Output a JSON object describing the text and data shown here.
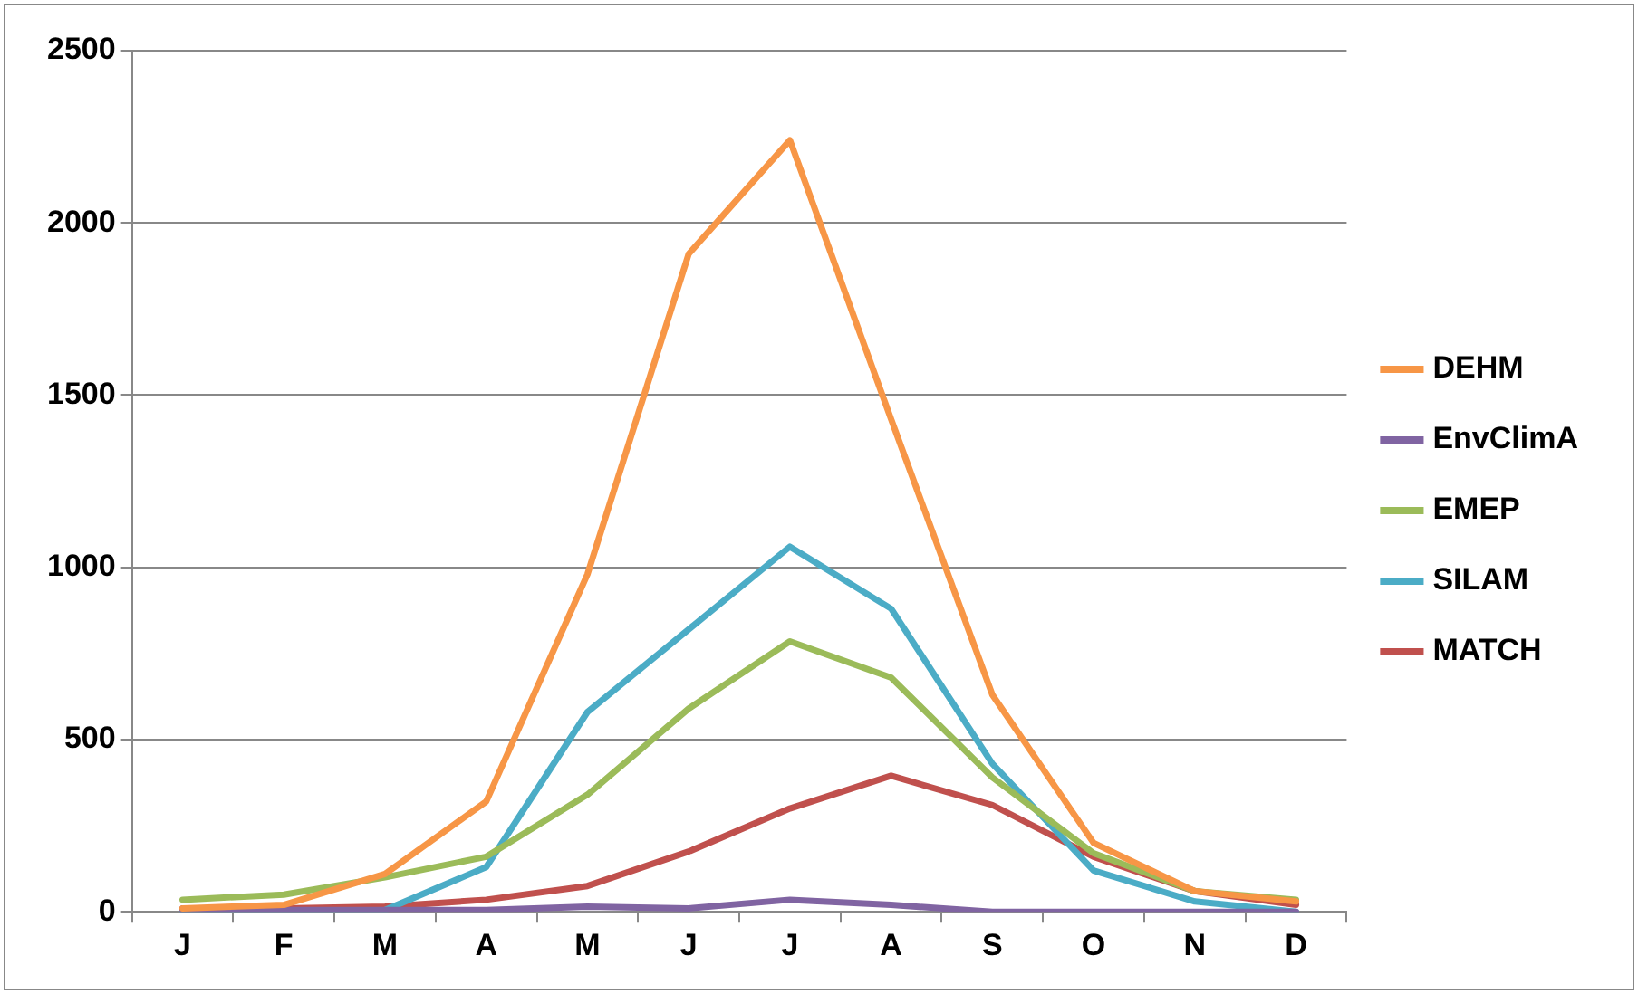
{
  "chart_data": {
    "type": "line",
    "categories": [
      "J",
      "F",
      "M",
      "A",
      "M",
      "J",
      "J",
      "A",
      "S",
      "O",
      "N",
      "D"
    ],
    "series": [
      {
        "name": "DEHM",
        "color": "#f79646",
        "values": [
          10,
          20,
          110,
          320,
          980,
          1910,
          2240,
          1430,
          630,
          200,
          60,
          30
        ]
      },
      {
        "name": "EnvClimA",
        "color": "#8064a2",
        "values": [
          5,
          5,
          5,
          5,
          15,
          10,
          35,
          20,
          0,
          0,
          0,
          0
        ]
      },
      {
        "name": "EMEP",
        "color": "#9bbb59",
        "values": [
          35,
          50,
          100,
          160,
          340,
          590,
          785,
          680,
          390,
          170,
          60,
          35
        ]
      },
      {
        "name": "SILAM",
        "color": "#4bacc6",
        "values": [
          0,
          0,
          5,
          130,
          580,
          820,
          1060,
          880,
          430,
          120,
          30,
          0
        ]
      },
      {
        "name": "MATCH",
        "color": "#c0504d",
        "values": [
          10,
          10,
          15,
          35,
          75,
          175,
          300,
          395,
          310,
          160,
          60,
          20
        ]
      }
    ],
    "ylim": [
      0,
      2500
    ],
    "yticks": [
      0,
      500,
      1000,
      1500,
      2000,
      2500
    ],
    "grid": "y",
    "legend": "right",
    "marker": "none",
    "line_style": "solid"
  }
}
